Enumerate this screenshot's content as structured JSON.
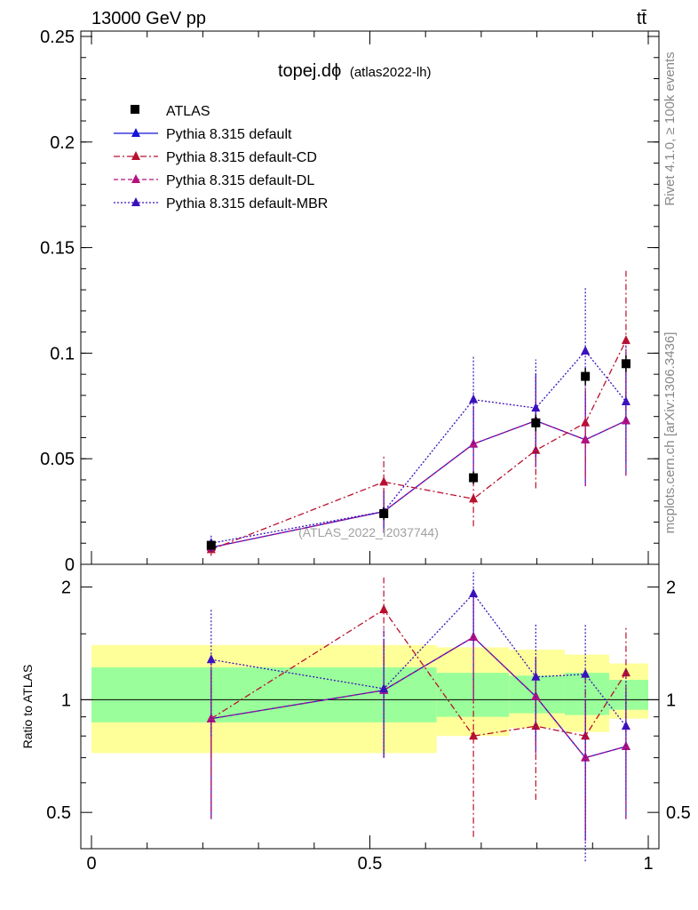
{
  "header": {
    "left": "13000 GeV pp",
    "right": "tt̄"
  },
  "side_labels": {
    "rivet": "Rivet 4.1.0, ≥ 100k events",
    "mcplots": "mcplots.cern.ch [arXiv:1306.3436]"
  },
  "colors": {
    "atlas": "#000000",
    "default": "#1515d8",
    "cd": "#b8102e",
    "dl": "#b5117e",
    "mbr": "#3a11bd",
    "band_yellow": "#ffff9a",
    "band_green": "#9aff9a"
  },
  "chart_data": {
    "type": "line",
    "title_main": "topej.d",
    "title_phi": "ϕ",
    "title_sub": "(atlas2022-lh)",
    "watermark": "(ATLAS_2022_I2037744)",
    "ylabel_ratio": "Ratio to ATLAS",
    "xlim": [
      0,
      1
    ],
    "ylim_main": [
      0,
      0.25
    ],
    "ylim_ratio": [
      0.4,
      2.3
    ],
    "xticks": [
      {
        "v": 0,
        "label": "0"
      },
      {
        "v": 0.5,
        "label": "0.5"
      },
      {
        "v": 1,
        "label": "1"
      }
    ],
    "yticks_main": [
      {
        "v": 0,
        "label": "0"
      },
      {
        "v": 0.05,
        "label": "0.05"
      },
      {
        "v": 0.1,
        "label": "0.1"
      },
      {
        "v": 0.15,
        "label": "0.15"
      },
      {
        "v": 0.2,
        "label": "0.2"
      },
      {
        "v": 0.25,
        "label": "0.25"
      }
    ],
    "yticks_ratio": [
      {
        "v": 0.5,
        "label": "0.5"
      },
      {
        "v": 1,
        "label": "1"
      },
      {
        "v": 2,
        "label": "2"
      }
    ],
    "x": [
      0.215,
      0.525,
      0.686,
      0.798,
      0.887,
      0.96
    ],
    "data": {
      "name": "ATLAS",
      "values": [
        0.009,
        0.024,
        0.041,
        0.067,
        0.089,
        0.095
      ],
      "errors": [
        0.001,
        0.003,
        0.003,
        0.004,
        0.004,
        0.004
      ]
    },
    "series": [
      {
        "name": "Pythia 8.315 default",
        "key": "default",
        "dash": "",
        "values": [
          0.008,
          0.025,
          0.057,
          0.068,
          0.059,
          0.068
        ],
        "errors": [
          0.002,
          0.01,
          0.018,
          0.022,
          0.022,
          0.026
        ]
      },
      {
        "name": "Pythia 8.315 default-CD",
        "key": "cd",
        "dash": "7,3,2,3",
        "values": [
          0.007,
          0.039,
          0.031,
          0.054,
          0.067,
          0.106
        ],
        "errors": [
          0.003,
          0.012,
          0.013,
          0.018,
          0.025,
          0.033
        ]
      },
      {
        "name": "Pythia 8.315 default-DL",
        "key": "dl",
        "dash": "5,3",
        "values": [
          0.008,
          0.025,
          0.057,
          0.068,
          0.059,
          0.068
        ],
        "errors": [
          0.002,
          0.01,
          0.018,
          0.022,
          0.022,
          0.026
        ]
      },
      {
        "name": "Pythia 8.315 default-MBR",
        "key": "mbr",
        "dash": "2,2",
        "values": [
          0.01,
          0.025,
          0.078,
          0.074,
          0.101,
          0.077
        ],
        "errors": [
          0.004,
          0.01,
          0.021,
          0.023,
          0.03,
          0.028
        ]
      }
    ],
    "ratio_bands": [
      {
        "x0": 0.0,
        "x1": 0.62,
        "y_lo": 0.72,
        "y_hi": 1.4,
        "g_lo": 0.87,
        "g_hi": 1.22
      },
      {
        "x0": 0.62,
        "x1": 0.75,
        "y_lo": 0.8,
        "y_hi": 1.38,
        "g_lo": 0.9,
        "g_hi": 1.18
      },
      {
        "x0": 0.75,
        "x1": 0.85,
        "y_lo": 0.84,
        "y_hi": 1.36,
        "g_lo": 0.92,
        "g_hi": 1.16
      },
      {
        "x0": 0.85,
        "x1": 0.93,
        "y_lo": 0.82,
        "y_hi": 1.32,
        "g_lo": 0.91,
        "g_hi": 1.18
      },
      {
        "x0": 0.93,
        "x1": 1.0,
        "y_lo": 0.89,
        "y_hi": 1.25,
        "g_lo": 0.94,
        "g_hi": 1.13
      }
    ],
    "ratio_series": [
      {
        "key": "default",
        "values": [
          0.89,
          1.06,
          1.47,
          1.02,
          0.7,
          0.75
        ],
        "lo": [
          0.48,
          0.7,
          1.0,
          0.72,
          0.42,
          0.48
        ],
        "hi": [
          1.2,
          1.45,
          1.95,
          1.3,
          1.0,
          1.05
        ]
      },
      {
        "key": "cd",
        "values": [
          0.89,
          1.74,
          0.8,
          0.85,
          0.8,
          1.18
        ],
        "lo": [
          0.5,
          1.25,
          0.43,
          0.54,
          0.45,
          0.82
        ],
        "hi": [
          1.3,
          2.12,
          1.18,
          1.16,
          1.18,
          1.56
        ]
      },
      {
        "key": "dl",
        "values": [
          0.89,
          1.06,
          1.47,
          1.02,
          0.7,
          0.75
        ],
        "lo": [
          0.48,
          0.7,
          1.0,
          0.72,
          0.42,
          0.48
        ],
        "hi": [
          1.2,
          1.45,
          1.95,
          1.3,
          1.0,
          1.05
        ]
      },
      {
        "key": "mbr",
        "values": [
          1.28,
          1.07,
          1.92,
          1.15,
          1.17,
          0.85
        ],
        "lo": [
          0.8,
          0.7,
          1.4,
          0.78,
          0.37,
          0.54
        ],
        "hi": [
          1.75,
          1.55,
          2.22,
          1.6,
          1.6,
          1.2
        ]
      }
    ]
  }
}
